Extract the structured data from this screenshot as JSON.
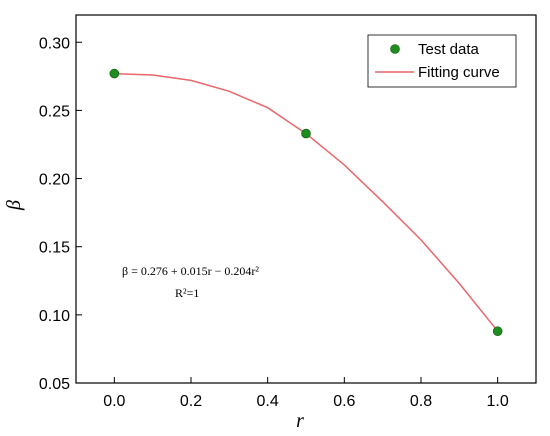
{
  "chart_data": {
    "type": "scatter",
    "xlabel": "r",
    "ylabel": "β",
    "xlim": [
      -0.1,
      1.1
    ],
    "ylim": [
      0.05,
      0.32
    ],
    "x_ticks": [
      "0.0",
      "0.2",
      "0.4",
      "0.6",
      "0.8",
      "1.0"
    ],
    "y_ticks": [
      "0.05",
      "0.10",
      "0.15",
      "0.20",
      "0.25",
      "0.30"
    ],
    "x_tick_values": [
      0.0,
      0.2,
      0.4,
      0.6,
      0.8,
      1.0
    ],
    "y_tick_values": [
      0.05,
      0.1,
      0.15,
      0.2,
      0.25,
      0.3
    ],
    "series": [
      {
        "name": "Test data",
        "kind": "points",
        "color": "#1f8c1f",
        "x": [
          0.0,
          0.5,
          1.0
        ],
        "y": [
          0.277,
          0.233,
          0.088
        ]
      },
      {
        "name": "Fitting curve",
        "kind": "line",
        "color": "#e8676b",
        "x": [
          0.0,
          0.1,
          0.2,
          0.3,
          0.4,
          0.5,
          0.6,
          0.7,
          0.8,
          0.9,
          1.0
        ],
        "y": [
          0.277,
          0.276,
          0.272,
          0.264,
          0.252,
          0.233,
          0.21,
          0.183,
          0.155,
          0.123,
          0.088
        ]
      }
    ],
    "legend": {
      "position": "top-right",
      "entries": [
        "Test data",
        "Fitting curve"
      ]
    },
    "annotations": {
      "equation": "β = 0.276 + 0.015r − 0.204r²",
      "r_squared": "R²=1"
    },
    "grid": false
  }
}
